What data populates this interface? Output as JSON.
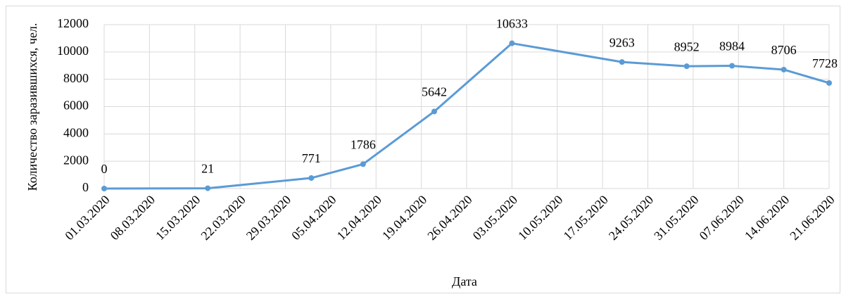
{
  "chart_data": {
    "type": "line",
    "y_label": "Количество заразившихся,  чел.",
    "x_label": "Дата",
    "x": [
      "01.03.2020",
      "17.03.2020",
      "02.04.2020",
      "10.04.2020",
      "21.04.2020",
      "03.05.2020",
      "20.05.2020",
      "30.05.2020",
      "06.06.2020",
      "14.06.2020",
      "21.06.2020"
    ],
    "series": [
      {
        "name": "Количество заразившихся",
        "color": "#5b9bd5",
        "values": [
          0,
          21,
          771,
          1786,
          5642,
          10633,
          9263,
          8952,
          8984,
          8706,
          7728
        ]
      }
    ],
    "xlim": [
      "01.03.2020",
      "21.06.2020"
    ],
    "xticks": [
      "01.03.2020",
      "08.03.2020",
      "15.03.2020",
      "22.03.2020",
      "29.03.2020",
      "05.04.2020",
      "12.04.2020",
      "19.04.2020",
      "26.04.2020",
      "03.05.2020",
      "10.05.2020",
      "17.05.2020",
      "24.05.2020",
      "31.05.2020",
      "07.06.2020",
      "14.06.2020",
      "21.06.2020"
    ],
    "ylim": [
      0,
      12000
    ],
    "yticks": [
      0,
      2000,
      4000,
      6000,
      8000,
      10000,
      12000
    ],
    "grid": true
  }
}
